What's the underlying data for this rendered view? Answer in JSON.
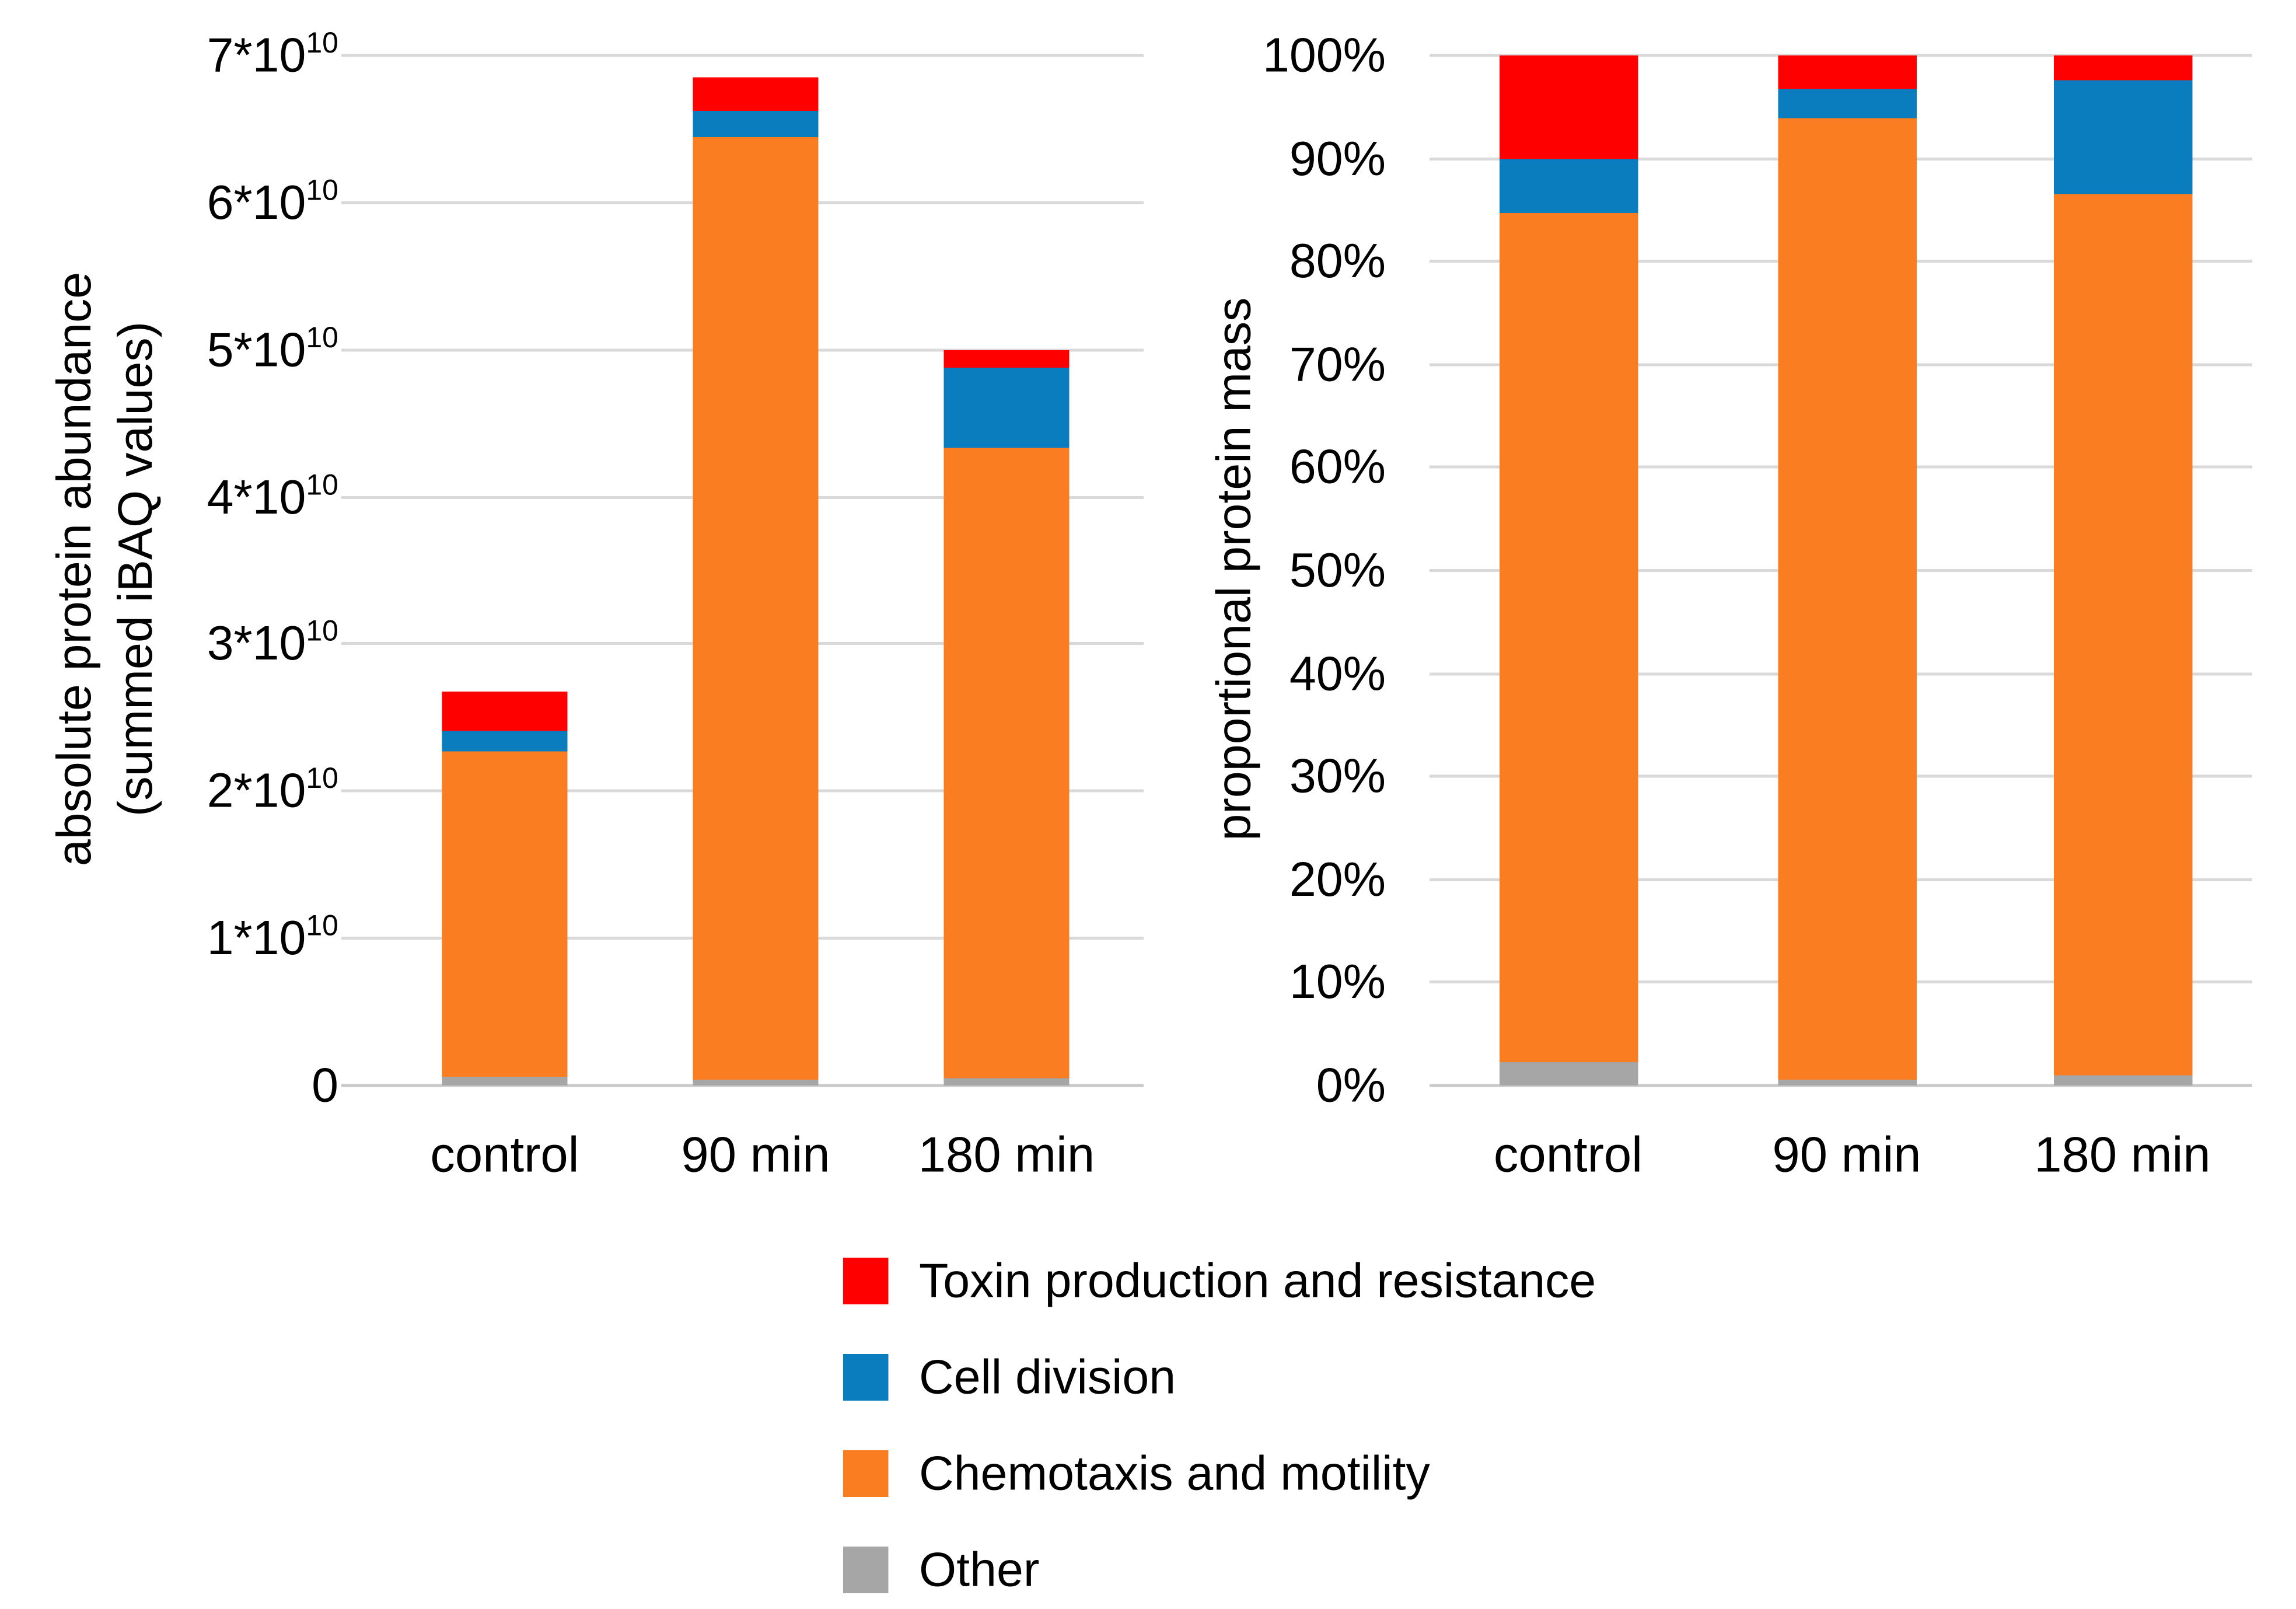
{
  "figure": {
    "background": "#FFFFFF",
    "gridline_color": "#D9D9D9",
    "axis_line_color": "#C9C9C9",
    "text_color": "#000000"
  },
  "legend": {
    "position": "bottom-center",
    "items": [
      {
        "label": "Toxin production and resistance",
        "color": "#FE0000"
      },
      {
        "label": "Cell division",
        "color": "#0A7DBE"
      },
      {
        "label": "Chemotaxis and motility",
        "color": "#FA7D22"
      },
      {
        "label": "Other",
        "color": "#A6A6A6"
      }
    ]
  },
  "chart_data": [
    {
      "type": "bar",
      "stacked": true,
      "title": "",
      "ylabel_lines": [
        "absolute protein abundance",
        "(summed iBAQ values)"
      ],
      "xlabel": "",
      "categories": [
        "control",
        "90 min",
        "180 min"
      ],
      "value_unit": "summed iBAQ values, ×10¹⁰",
      "ylim": [
        0,
        7
      ],
      "grid": true,
      "series": [
        {
          "name": "Other",
          "color": "#A6A6A6",
          "values": [
            0.06,
            0.04,
            0.05
          ]
        },
        {
          "name": "Chemotaxis and motility",
          "color": "#FA7D22",
          "values": [
            2.21,
            6.4,
            4.28
          ]
        },
        {
          "name": "Cell division",
          "color": "#0A7DBE",
          "values": [
            0.14,
            0.18,
            0.55
          ]
        },
        {
          "name": "Toxin production and resistance",
          "color": "#FE0000",
          "values": [
            0.27,
            0.23,
            0.12
          ]
        }
      ],
      "yticks": [
        {
          "v": 0,
          "label": "0"
        },
        {
          "v": 1,
          "label": "1*10",
          "sup": "10"
        },
        {
          "v": 2,
          "label": "2*10",
          "sup": "10"
        },
        {
          "v": 3,
          "label": "3*10",
          "sup": "10"
        },
        {
          "v": 4,
          "label": "4*10",
          "sup": "10"
        },
        {
          "v": 5,
          "label": "5*10",
          "sup": "10"
        },
        {
          "v": 6,
          "label": "6*10",
          "sup": "10"
        },
        {
          "v": 7,
          "label": "7*10",
          "sup": "10"
        }
      ]
    },
    {
      "type": "bar",
      "stacked": true,
      "title": "",
      "ylabel_lines": [
        "proportional protein mass"
      ],
      "xlabel": "",
      "categories": [
        "control",
        "90 min",
        "180 min"
      ],
      "value_unit": "%",
      "ylim": [
        0,
        100
      ],
      "grid": true,
      "series": [
        {
          "name": "Other",
          "color": "#A6A6A6",
          "values": [
            2.2,
            0.6,
            1.0
          ]
        },
        {
          "name": "Chemotaxis and motility",
          "color": "#FA7D22",
          "values": [
            82.5,
            93.3,
            85.6
          ]
        },
        {
          "name": "Cell division",
          "color": "#0A7DBE",
          "values": [
            5.3,
            2.8,
            11.0
          ]
        },
        {
          "name": "Toxin production and resistance",
          "color": "#FE0000",
          "values": [
            10.0,
            3.3,
            2.4
          ]
        }
      ],
      "yticks": [
        {
          "v": 0,
          "label": "0%"
        },
        {
          "v": 10,
          "label": "10%"
        },
        {
          "v": 20,
          "label": "20%"
        },
        {
          "v": 30,
          "label": "30%"
        },
        {
          "v": 40,
          "label": "40%"
        },
        {
          "v": 50,
          "label": "50%"
        },
        {
          "v": 60,
          "label": "60%"
        },
        {
          "v": 70,
          "label": "70%"
        },
        {
          "v": 80,
          "label": "80%"
        },
        {
          "v": 90,
          "label": "90%"
        },
        {
          "v": 100,
          "label": "100%"
        }
      ]
    }
  ]
}
